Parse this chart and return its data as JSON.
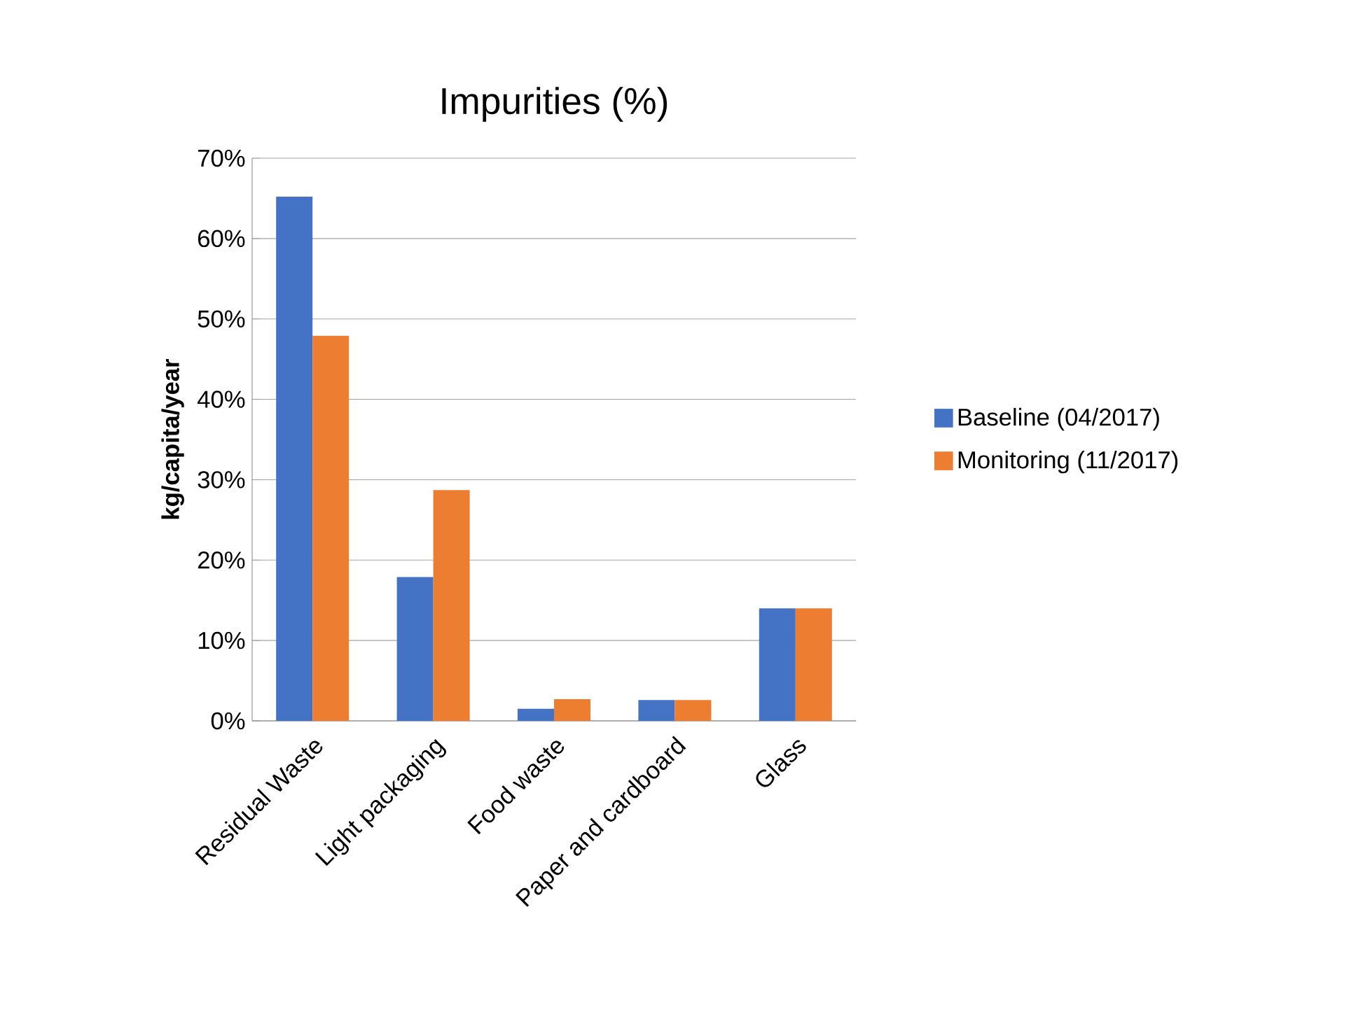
{
  "chart_data": {
    "type": "bar",
    "title": "Impurities (%)",
    "ylabel": "kg/capita/year",
    "categories": [
      "Residual Waste",
      "Light packaging",
      "Food waste",
      "Paper and cardboard",
      "Glass"
    ],
    "series": [
      {
        "name": "Baseline (04/2017)",
        "color": "#4472c4",
        "values": [
          65.2,
          17.9,
          1.5,
          2.6,
          14.0
        ]
      },
      {
        "name": "Monitoring (11/2017)",
        "color": "#ed7d31",
        "values": [
          47.9,
          28.7,
          2.7,
          2.6,
          14.0
        ]
      }
    ],
    "ylim": [
      0,
      70
    ],
    "yticks": [
      {
        "value": 0,
        "label": "0%"
      },
      {
        "value": 10,
        "label": "10%"
      },
      {
        "value": 20,
        "label": "20%"
      },
      {
        "value": 30,
        "label": "30%"
      },
      {
        "value": 40,
        "label": "40%"
      },
      {
        "value": 50,
        "label": "50%"
      },
      {
        "value": 60,
        "label": "60%"
      },
      {
        "value": 70,
        "label": "70%"
      }
    ],
    "grid": "y",
    "legend": "right"
  }
}
